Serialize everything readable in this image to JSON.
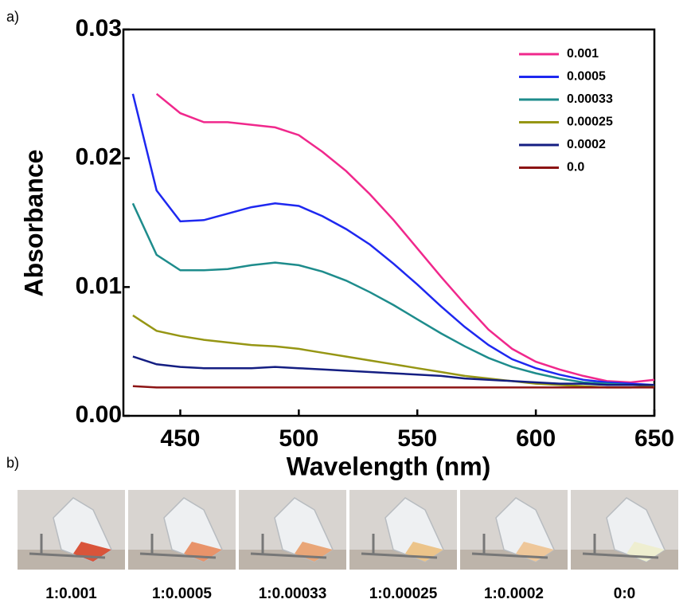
{
  "chart_data": {
    "type": "line",
    "x_label": "Wavelength (nm)",
    "y_label": "Absorbance",
    "x": [
      430,
      440,
      450,
      460,
      470,
      480,
      490,
      500,
      510,
      520,
      530,
      540,
      550,
      560,
      570,
      580,
      590,
      600,
      610,
      620,
      630,
      640,
      650
    ],
    "series": [
      {
        "name": "0.001",
        "color": "#f0288c",
        "values": [
          null,
          0.025,
          0.0235,
          0.0228,
          0.0228,
          0.0226,
          0.0224,
          0.0218,
          0.0205,
          0.019,
          0.0172,
          0.0152,
          0.013,
          0.0108,
          0.0087,
          0.0067,
          0.0052,
          0.0042,
          0.0036,
          0.0031,
          0.0027,
          0.0026,
          0.0028
        ]
      },
      {
        "name": "0.0005",
        "color": "#1e28f0",
        "values": [
          0.025,
          0.0175,
          0.0151,
          0.0152,
          0.0157,
          0.0162,
          0.0165,
          0.0163,
          0.0155,
          0.0145,
          0.0133,
          0.0118,
          0.0102,
          0.0085,
          0.0069,
          0.0055,
          0.0044,
          0.0037,
          0.0032,
          0.0028,
          0.0026,
          0.0025,
          0.0024
        ]
      },
      {
        "name": "0.00033",
        "color": "#1e8c8c",
        "values": [
          0.0165,
          0.0125,
          0.0113,
          0.0113,
          0.0114,
          0.0117,
          0.0119,
          0.0117,
          0.0112,
          0.0105,
          0.0096,
          0.0086,
          0.0075,
          0.0064,
          0.0054,
          0.0045,
          0.0038,
          0.0033,
          0.0029,
          0.0026,
          0.0025,
          0.0024,
          0.0024
        ]
      },
      {
        "name": "0.00025",
        "color": "#969614",
        "values": [
          0.0078,
          0.0066,
          0.0062,
          0.0059,
          0.0057,
          0.0055,
          0.0054,
          0.0052,
          0.0049,
          0.0046,
          0.0043,
          0.004,
          0.0037,
          0.0034,
          0.0031,
          0.0029,
          0.0027,
          0.0025,
          0.0024,
          0.0023,
          0.0022,
          0.0022,
          0.0023
        ]
      },
      {
        "name": "0.0002",
        "color": "#141e82",
        "values": [
          0.0046,
          0.004,
          0.0038,
          0.0037,
          0.0037,
          0.0037,
          0.0038,
          0.0037,
          0.0036,
          0.0035,
          0.0034,
          0.0033,
          0.0032,
          0.0031,
          0.0029,
          0.0028,
          0.0027,
          0.0026,
          0.0025,
          0.0025,
          0.0024,
          0.0024,
          0.0024
        ]
      },
      {
        "name": "0.0",
        "color": "#8c1414",
        "values": [
          0.0023,
          0.0022,
          0.0022,
          0.0022,
          0.0022,
          0.0022,
          0.0022,
          0.0022,
          0.0022,
          0.0022,
          0.0022,
          0.0022,
          0.0022,
          0.0022,
          0.0022,
          0.0022,
          0.0022,
          0.0022,
          0.0022,
          0.0022,
          0.0022,
          0.0022,
          0.0022
        ]
      }
    ],
    "xlim": [
      426,
      650
    ],
    "xticks": [
      450,
      500,
      550,
      600,
      650
    ],
    "ylim": [
      0,
      0.03
    ],
    "yticks": [
      {
        "value": 0,
        "label": "0.00"
      },
      0.01,
      0.02,
      0.03
    ],
    "legend": "upper right"
  },
  "panel_labels": [
    "a)",
    "b)"
  ],
  "photo_captions": [
    "1:0.001",
    "1:0.0005",
    "1:0.00033",
    "1:0.00025",
    "1:0.0002",
    "0:0"
  ]
}
